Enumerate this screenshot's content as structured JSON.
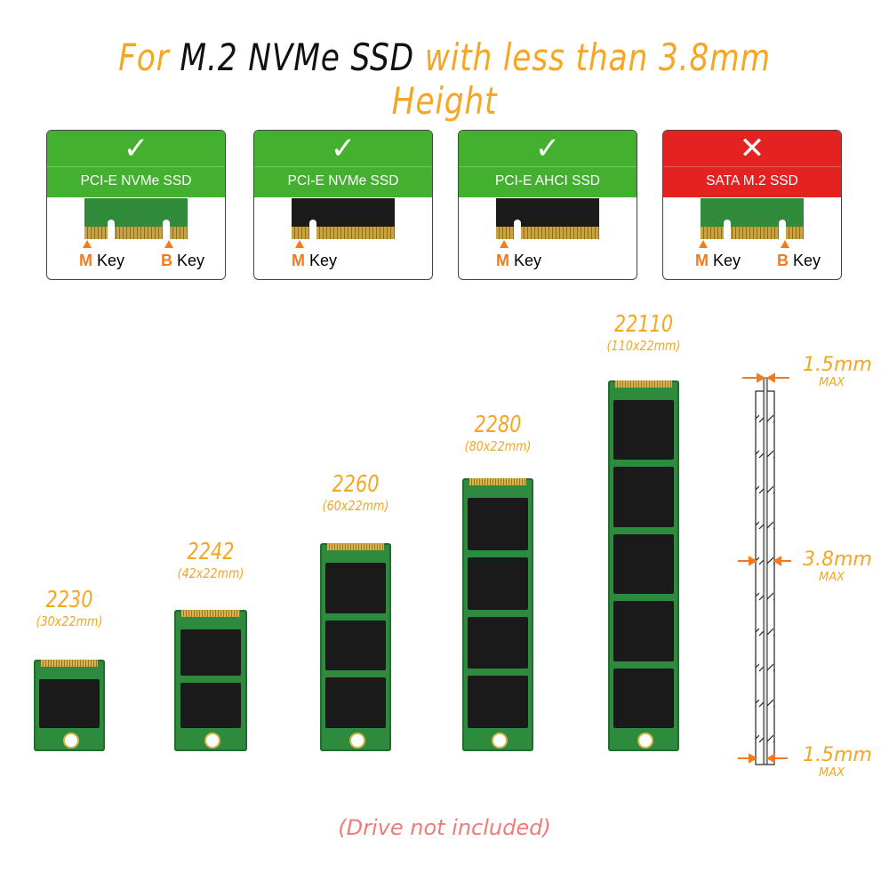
{
  "title": {
    "part1": "For ",
    "part2": "M.2 NVMe SSD",
    "part3": " with less than 3.8mm Height"
  },
  "compat": [
    {
      "mark": "✓",
      "label": "PCI-E NVMe SSD",
      "keys": [
        "M",
        "B"
      ],
      "key_word": "Key",
      "supported": true
    },
    {
      "mark": "✓",
      "label": "PCI-E NVMe SSD",
      "keys": [
        "M"
      ],
      "key_word": "Key",
      "supported": true
    },
    {
      "mark": "✓",
      "label": "PCI-E AHCI SSD",
      "keys": [
        "M"
      ],
      "key_word": "Key",
      "supported": true
    },
    {
      "mark": "✕",
      "label": "SATA M.2 SSD",
      "keys": [
        "M",
        "B"
      ],
      "key_word": "Key",
      "supported": false
    }
  ],
  "sizes": [
    {
      "name": "2230",
      "dims": "(30x22mm)"
    },
    {
      "name": "2242",
      "dims": "(42x22mm)"
    },
    {
      "name": "2260",
      "dims": "(60x22mm)"
    },
    {
      "name": "2280",
      "dims": "(80x22mm)"
    },
    {
      "name": "22110",
      "dims": "(110x22mm)"
    }
  ],
  "thickness": [
    {
      "value": "1.5mm",
      "note": "MAX"
    },
    {
      "value": "3.8mm",
      "note": "MAX"
    },
    {
      "value": "1.5mm",
      "note": "MAX"
    }
  ],
  "note": "(Drive not included)",
  "colors": {
    "accent": "#f5a623",
    "ok": "#43b02f",
    "bad": "#e52222",
    "note": "#f07a7a"
  }
}
